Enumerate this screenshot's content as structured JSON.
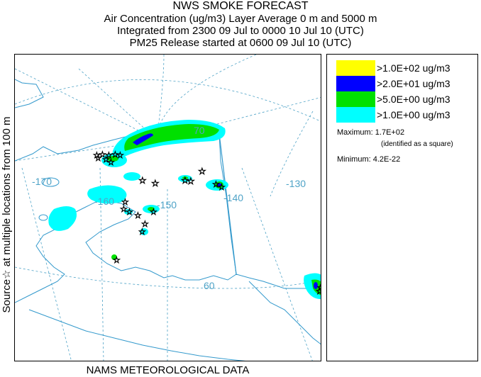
{
  "header": {
    "title": "NWS SMOKE FORECAST",
    "line1": "Air Concentration (ug/m3) Layer Average    0 m and  5000 m",
    "line2": "Integrated from 2300 09 Jul to 0000 10 Jul 10 (UTC)",
    "line3": "PM25 Release started at 0600 09 Jul 10 (UTC)"
  },
  "side_label": "Source☆  at multiple locations   from   100 m",
  "footer": "NAMS METEOROLOGICAL DATA",
  "legend": {
    "items": [
      {
        "label": ">1.0E+02 ug/m3",
        "color": "#ffff00"
      },
      {
        "label": ">2.0E+01 ug/m3",
        "color": "#0000ff"
      },
      {
        "label": ">5.0E+00 ug/m3",
        "color": "#00e000"
      },
      {
        "label": ">1.0E+00 ug/m3",
        "color": "#00ffff"
      }
    ],
    "maximum": "Maximum: 1.7E+02",
    "maximum_note": "(identified as a square)",
    "minimum": "Minimum: 4.2E-22"
  },
  "map": {
    "graticule_labels": [
      "-170",
      "-160",
      "-150",
      "-140",
      "-130",
      "70",
      "60"
    ],
    "colors": {
      "coast": "#3399cc",
      "grid": "#4fa3c7",
      "plume_light": "#00ffff",
      "plume_mid": "#00e000",
      "plume_high": "#0000ff"
    }
  }
}
